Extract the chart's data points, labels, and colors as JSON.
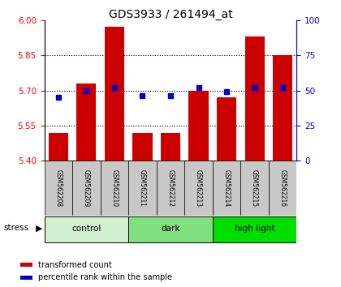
{
  "title": "GDS3933 / 261494_at",
  "samples": [
    "GSM562208",
    "GSM562209",
    "GSM562210",
    "GSM562211",
    "GSM562212",
    "GSM562213",
    "GSM562214",
    "GSM562215",
    "GSM562216"
  ],
  "red_values": [
    5.52,
    5.73,
    5.97,
    5.52,
    5.52,
    5.7,
    5.67,
    5.93,
    5.85
  ],
  "blue_values": [
    45,
    50,
    52,
    46,
    46,
    52,
    49,
    52,
    52
  ],
  "ylim_left": [
    5.4,
    6.0
  ],
  "ylim_right": [
    0,
    100
  ],
  "yticks_left": [
    5.4,
    5.55,
    5.7,
    5.85,
    6.0
  ],
  "yticks_right": [
    0,
    25,
    50,
    75,
    100
  ],
  "groups": [
    {
      "label": "control",
      "indices": [
        0,
        1,
        2
      ],
      "color": "#d0f0d0"
    },
    {
      "label": "dark",
      "indices": [
        3,
        4,
        5
      ],
      "color": "#80e080"
    },
    {
      "label": "high light",
      "indices": [
        6,
        7,
        8
      ],
      "color": "#00dd00"
    }
  ],
  "stress_label": "stress",
  "bar_color": "#cc0000",
  "dot_color": "#0000cc",
  "bar_bottom": 5.4,
  "grid_yticks": [
    5.55,
    5.7,
    5.85
  ],
  "legend_items": [
    {
      "color": "#cc0000",
      "label": "transformed count"
    },
    {
      "color": "#0000cc",
      "label": "percentile rank within the sample"
    }
  ],
  "sample_box_color": "#c8c8c8",
  "bar_width": 0.7
}
